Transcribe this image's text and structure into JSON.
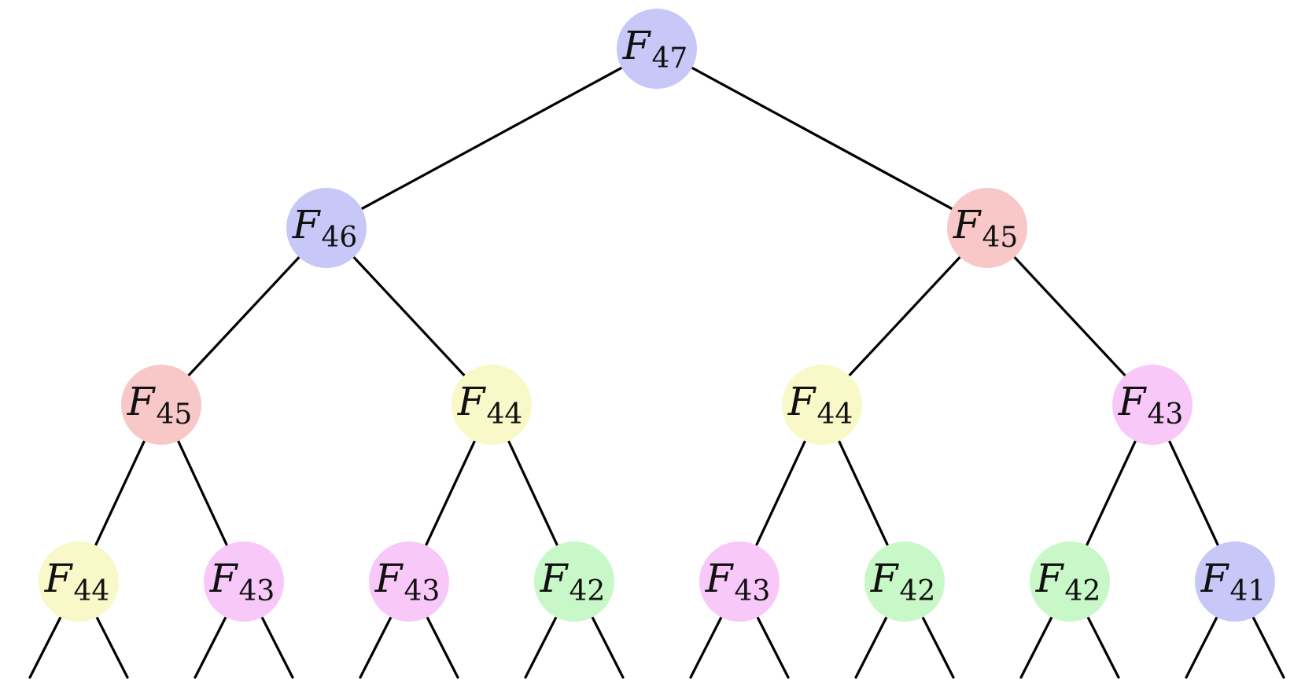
{
  "diagram": {
    "kind": "recursion-tree",
    "colors": {
      "blue": "#c8c8f8",
      "red": "#f8c8c8",
      "yellow": "#f8f8c8",
      "pink": "#f8c8f8",
      "green": "#c8f8c8"
    },
    "nodes": [
      {
        "id": "n1",
        "base": "F",
        "sub": "47",
        "color": "blue"
      },
      {
        "id": "n2",
        "base": "F",
        "sub": "46",
        "color": "blue"
      },
      {
        "id": "n3",
        "base": "F",
        "sub": "45",
        "color": "red"
      },
      {
        "id": "n4",
        "base": "F",
        "sub": "45",
        "color": "red"
      },
      {
        "id": "n5",
        "base": "F",
        "sub": "44",
        "color": "yellow"
      },
      {
        "id": "n6",
        "base": "F",
        "sub": "44",
        "color": "yellow"
      },
      {
        "id": "n7",
        "base": "F",
        "sub": "43",
        "color": "pink"
      },
      {
        "id": "n8",
        "base": "F",
        "sub": "44",
        "color": "yellow"
      },
      {
        "id": "n9",
        "base": "F",
        "sub": "43",
        "color": "pink"
      },
      {
        "id": "n10",
        "base": "F",
        "sub": "43",
        "color": "pink"
      },
      {
        "id": "n11",
        "base": "F",
        "sub": "42",
        "color": "green"
      },
      {
        "id": "n12",
        "base": "F",
        "sub": "43",
        "color": "pink"
      },
      {
        "id": "n13",
        "base": "F",
        "sub": "42",
        "color": "green"
      },
      {
        "id": "n14",
        "base": "F",
        "sub": "42",
        "color": "green"
      },
      {
        "id": "n15",
        "base": "F",
        "sub": "41",
        "color": "blue"
      }
    ]
  }
}
